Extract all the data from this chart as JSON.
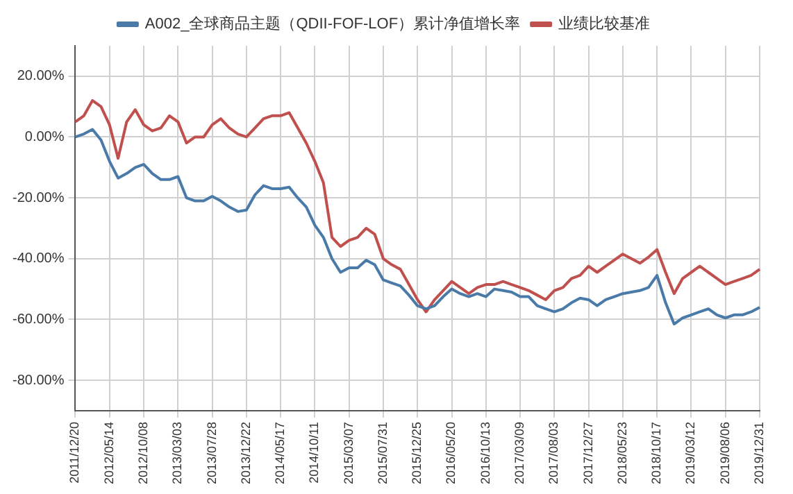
{
  "chart_data": {
    "type": "line",
    "categories": [
      "2011/12/20",
      null,
      null,
      null,
      "2012/05/14",
      null,
      null,
      null,
      "2012/10/08",
      null,
      null,
      null,
      "2013/03/03",
      null,
      null,
      null,
      "2013/07/28",
      null,
      null,
      null,
      "2013/12/22",
      null,
      null,
      null,
      "2014/05/17",
      null,
      null,
      null,
      "2014/10/11",
      null,
      null,
      null,
      "2015/03/07",
      null,
      null,
      null,
      "2015/07/31",
      null,
      null,
      null,
      "2015/12/25",
      null,
      null,
      null,
      "2016/05/20",
      null,
      null,
      null,
      "2016/10/13",
      null,
      null,
      null,
      "2017/03/09",
      null,
      null,
      null,
      "2017/08/03",
      null,
      null,
      null,
      "2017/12/27",
      null,
      null,
      null,
      "2018/05/23",
      null,
      null,
      null,
      "2018/10/17",
      null,
      null,
      null,
      "2019/03/12",
      null,
      null,
      null,
      "2019/08/06",
      null,
      null,
      null,
      "2019/12/31"
    ],
    "series": [
      {
        "name": "A002_全球商品主题（QDII-FOF-LOF）累计净值增长率",
        "color": "#4a7aa8",
        "values": [
          0,
          1,
          2.5,
          -1,
          -8,
          -13.5,
          -12,
          -10,
          -9,
          -12,
          -14,
          -14,
          -13,
          -20,
          -21,
          -21,
          -19.5,
          -21,
          -23,
          -24.5,
          -24,
          -19,
          -16,
          -17,
          -17,
          -16.5,
          -20,
          -23,
          -29,
          -33,
          -40,
          -44.5,
          -43,
          -43,
          -40.5,
          -42,
          -47,
          -48,
          -49,
          -52,
          -55.5,
          -56.5,
          -55.5,
          -52.5,
          -50,
          -51.5,
          -52.5,
          -51.5,
          -52.5,
          -50,
          -50.5,
          -51,
          -52.5,
          -52.5,
          -55.5,
          -56.5,
          -57.5,
          -56.5,
          -54.5,
          -53,
          -53.5,
          -55.5,
          -53.5,
          -52.5,
          -51.5,
          -51,
          -50.5,
          -49.5,
          -45.5,
          -54.5,
          -61.5,
          -59.5,
          -58.5,
          -57.5,
          -56.5,
          -58.5,
          -59.5,
          -58.5,
          -58.5,
          -57.5,
          -56
        ]
      },
      {
        "name": "业绩比较基准",
        "color": "#c0504d",
        "values": [
          5,
          7,
          12,
          10,
          4,
          -7,
          5,
          9,
          4,
          2,
          3,
          7,
          5,
          -2,
          0,
          0,
          4,
          6,
          3,
          1,
          0,
          3,
          6,
          7,
          7,
          8,
          3,
          -2,
          -8,
          -15,
          -33,
          -36,
          -34,
          -33,
          -30,
          -32,
          -40,
          -42,
          -43.5,
          -48.5,
          -53.5,
          -57.5,
          -53.5,
          -50.5,
          -47.5,
          -49.5,
          -51.5,
          -49.5,
          -48.5,
          -48.5,
          -47.5,
          -48.5,
          -49.5,
          -50.5,
          -52,
          -53.5,
          -50.5,
          -49.5,
          -46.5,
          -45.5,
          -42.5,
          -44.5,
          -42.5,
          -40.5,
          -38.5,
          -40,
          -41.5,
          -39.5,
          -37,
          -44.5,
          -51.5,
          -46.5,
          -44.5,
          -42.5,
          -44.5,
          -46.5,
          -48.5,
          -47.5,
          -46.5,
          -45.5,
          -43.5
        ]
      }
    ],
    "ylim": [
      -90,
      30
    ],
    "yticks": [
      {
        "value": -80,
        "label": "-80.00%"
      },
      {
        "value": -60,
        "label": "-60.00%"
      },
      {
        "value": -40,
        "label": "-40.00%"
      },
      {
        "value": -20,
        "label": "-20.00%"
      },
      {
        "value": 0,
        "label": "0.00%"
      },
      {
        "value": 20,
        "label": "20.00%"
      }
    ],
    "grid": true,
    "legend": "top",
    "marker": "none",
    "line_style": "solid"
  }
}
